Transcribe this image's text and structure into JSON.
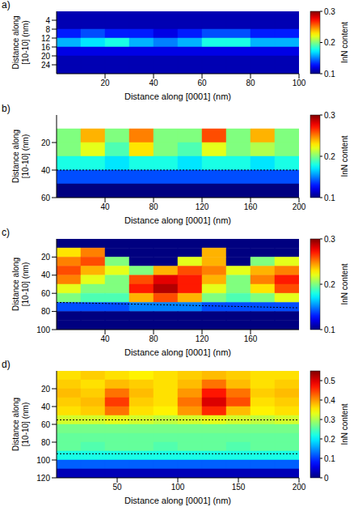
{
  "chart_data": [
    {
      "type": "heatmap",
      "panel": "a)",
      "x_label": "Distance along [0001] (nm)",
      "y_label": "Distance along [10-10] (nm)",
      "xlim": [
        0,
        100
      ],
      "xticks": [
        20,
        40,
        60,
        80,
        100
      ],
      "ylim": [
        0,
        28
      ],
      "yticks": [
        4,
        8,
        12,
        16,
        20,
        24
      ],
      "heatmap": {
        "x": [
          5,
          15,
          25,
          35,
          45,
          55,
          65,
          75,
          85,
          95
        ],
        "y": [
          2,
          6,
          10,
          14,
          18,
          22,
          26
        ],
        "values": [
          [
            0.11,
            0.11,
            0.11,
            0.11,
            0.11,
            0.11,
            0.11,
            0.11,
            0.11,
            0.11
          ],
          [
            0.11,
            0.11,
            0.11,
            0.11,
            0.11,
            0.11,
            0.11,
            0.11,
            0.11,
            0.11
          ],
          [
            0.13,
            0.14,
            0.13,
            0.13,
            0.12,
            0.13,
            0.14,
            0.14,
            0.13,
            0.13
          ],
          [
            0.16,
            0.17,
            0.18,
            0.16,
            0.15,
            0.16,
            0.18,
            0.18,
            0.16,
            0.16
          ],
          [
            0.12,
            0.12,
            0.12,
            0.12,
            0.12,
            0.12,
            0.12,
            0.12,
            0.12,
            0.12
          ],
          [
            0.11,
            0.11,
            0.11,
            0.11,
            0.11,
            0.11,
            0.11,
            0.11,
            0.11,
            0.11
          ],
          [
            0.11,
            0.11,
            0.11,
            0.11,
            0.11,
            0.11,
            0.11,
            0.11,
            0.11,
            0.11
          ]
        ]
      },
      "colorbar": {
        "label": "InN content",
        "range": [
          0.1,
          0.3
        ],
        "ticks": [
          0.1,
          0.2,
          0.3
        ]
      },
      "lines": []
    },
    {
      "type": "heatmap",
      "panel": "b)",
      "x_label": "Distance along [0001] (nm)",
      "y_label": "Distance along [10-10] (nm)",
      "xlim": [
        0,
        200
      ],
      "xticks": [
        40,
        80,
        120,
        160,
        200
      ],
      "ylim": [
        0,
        60
      ],
      "yticks": [
        20,
        40,
        60
      ],
      "heatmap": {
        "x": [
          10,
          30,
          50,
          70,
          90,
          110,
          130,
          150,
          170,
          190
        ],
        "y": [
          5,
          15,
          25,
          35,
          45,
          55
        ],
        "values": [
          [
            null,
            null,
            null,
            null,
            null,
            null,
            null,
            null,
            null,
            null
          ],
          [
            0.2,
            0.24,
            0.2,
            0.25,
            0.2,
            0.2,
            0.26,
            0.2,
            0.24,
            0.2
          ],
          [
            0.2,
            0.22,
            0.19,
            0.23,
            0.2,
            0.19,
            0.22,
            0.2,
            0.21,
            0.2
          ],
          [
            0.18,
            0.18,
            0.17,
            0.18,
            0.18,
            0.17,
            0.18,
            0.18,
            0.17,
            0.18
          ],
          [
            0.14,
            0.14,
            0.14,
            0.14,
            0.14,
            0.14,
            0.14,
            0.14,
            0.14,
            0.14
          ],
          [
            0.1,
            0.1,
            0.1,
            0.1,
            0.1,
            0.1,
            0.1,
            0.1,
            0.1,
            0.1
          ]
        ]
      },
      "colorbar": {
        "label": "InN content",
        "range": [
          0.1,
          0.3
        ],
        "ticks": [
          0.1,
          0.2,
          0.3
        ]
      },
      "lines": [
        {
          "x": [
            0,
            200
          ],
          "y": [
            40,
            40
          ],
          "line_style": "dotted"
        }
      ]
    },
    {
      "type": "heatmap",
      "panel": "c)",
      "x_label": "Distance along [0001] (nm)",
      "y_label": "Distance along [10-10] (nm)",
      "xlim": [
        0,
        200
      ],
      "xticks": [
        40,
        80,
        120,
        160
      ],
      "ylim": [
        0,
        100
      ],
      "yticks": [
        20,
        40,
        60,
        80,
        100
      ],
      "heatmap": {
        "x": [
          10,
          30,
          50,
          70,
          90,
          110,
          130,
          150,
          170,
          190
        ],
        "y": [
          5,
          15,
          25,
          35,
          45,
          55,
          65,
          75,
          85,
          95
        ],
        "values": [
          [
            0.1,
            0.1,
            0.1,
            0.1,
            0.1,
            0.1,
            0.1,
            0.1,
            0.1,
            0.1
          ],
          [
            0.23,
            0.25,
            0.1,
            0.1,
            0.1,
            0.1,
            0.24,
            0.1,
            0.1,
            0.1
          ],
          [
            0.25,
            0.26,
            0.2,
            0.1,
            0.1,
            0.22,
            0.24,
            0.1,
            0.2,
            0.22
          ],
          [
            0.26,
            0.24,
            0.22,
            0.2,
            0.24,
            0.26,
            0.25,
            0.22,
            0.24,
            0.25
          ],
          [
            0.25,
            0.22,
            0.2,
            0.26,
            0.28,
            0.27,
            0.24,
            0.2,
            0.25,
            0.27
          ],
          [
            0.22,
            0.2,
            0.2,
            0.27,
            0.29,
            0.27,
            0.22,
            0.2,
            0.23,
            0.26
          ],
          [
            0.2,
            0.19,
            0.19,
            0.24,
            0.26,
            0.24,
            0.2,
            0.19,
            0.2,
            0.22
          ],
          [
            0.14,
            0.14,
            0.14,
            0.15,
            0.15,
            0.15,
            0.14,
            0.14,
            0.14,
            0.14
          ],
          [
            0.1,
            0.1,
            0.1,
            0.1,
            0.1,
            0.1,
            0.1,
            0.1,
            0.1,
            0.1
          ],
          [
            0.1,
            0.1,
            0.1,
            0.1,
            0.1,
            0.1,
            0.1,
            0.1,
            0.1,
            0.1
          ]
        ]
      },
      "colorbar": {
        "label": "InN content",
        "range": [
          0.1,
          0.3
        ],
        "ticks": [
          0.1,
          0.2,
          0.3
        ]
      },
      "lines": [
        {
          "x": [
            0,
            200
          ],
          "y": [
            70,
            76
          ],
          "line_style": "dotted"
        }
      ]
    },
    {
      "type": "heatmap",
      "panel": "d)",
      "x_label": "Distance along [0001] (nm)",
      "y_label": "Distance along [10-10] (nm)",
      "xlim": [
        0,
        200
      ],
      "xticks": [
        50,
        100,
        150,
        200
      ],
      "ylim": [
        0,
        120
      ],
      "yticks": [
        20,
        40,
        60,
        80,
        100,
        120
      ],
      "heatmap": {
        "x": [
          10,
          30,
          50,
          70,
          90,
          110,
          130,
          150,
          170,
          190
        ],
        "y": [
          5,
          15,
          25,
          35,
          45,
          55,
          65,
          75,
          85,
          95,
          105,
          115
        ],
        "values": [
          [
            0.36,
            0.37,
            0.36,
            0.35,
            0.36,
            0.37,
            0.38,
            0.37,
            0.36,
            0.36
          ],
          [
            0.37,
            0.36,
            0.38,
            0.37,
            0.36,
            0.38,
            0.42,
            0.38,
            0.36,
            0.37
          ],
          [
            0.38,
            0.37,
            0.42,
            0.38,
            0.36,
            0.4,
            0.47,
            0.42,
            0.37,
            0.38
          ],
          [
            0.37,
            0.38,
            0.45,
            0.37,
            0.36,
            0.42,
            0.5,
            0.44,
            0.36,
            0.37
          ],
          [
            0.36,
            0.37,
            0.42,
            0.36,
            0.35,
            0.4,
            0.46,
            0.38,
            0.35,
            0.36
          ],
          [
            0.32,
            0.32,
            0.33,
            0.32,
            0.31,
            0.32,
            0.33,
            0.32,
            0.31,
            0.32
          ],
          [
            0.27,
            0.27,
            0.27,
            0.27,
            0.27,
            0.27,
            0.27,
            0.27,
            0.27,
            0.27
          ],
          [
            0.26,
            0.26,
            0.26,
            0.26,
            0.26,
            0.26,
            0.26,
            0.26,
            0.26,
            0.26
          ],
          [
            0.26,
            0.25,
            0.26,
            0.26,
            0.25,
            0.26,
            0.26,
            0.25,
            0.26,
            0.26
          ],
          [
            0.22,
            0.22,
            0.22,
            0.22,
            0.22,
            0.22,
            0.22,
            0.22,
            0.22,
            0.22
          ],
          [
            0.12,
            0.12,
            0.12,
            0.12,
            0.12,
            0.12,
            0.12,
            0.12,
            0.12,
            0.12
          ],
          [
            0.03,
            0.03,
            0.03,
            0.03,
            0.03,
            0.03,
            0.03,
            0.03,
            0.03,
            0.03
          ]
        ]
      },
      "colorbar": {
        "label": "InN content",
        "range": [
          0,
          0.55
        ],
        "ticks": [
          0,
          0.1,
          0.2,
          0.3,
          0.4,
          0.5
        ]
      },
      "lines": [
        {
          "x": [
            0,
            200
          ],
          "y": [
            55,
            55
          ],
          "line_style": "dotted"
        },
        {
          "x": [
            0,
            200
          ],
          "y": [
            93,
            93
          ],
          "line_style": "dotted"
        }
      ]
    }
  ]
}
